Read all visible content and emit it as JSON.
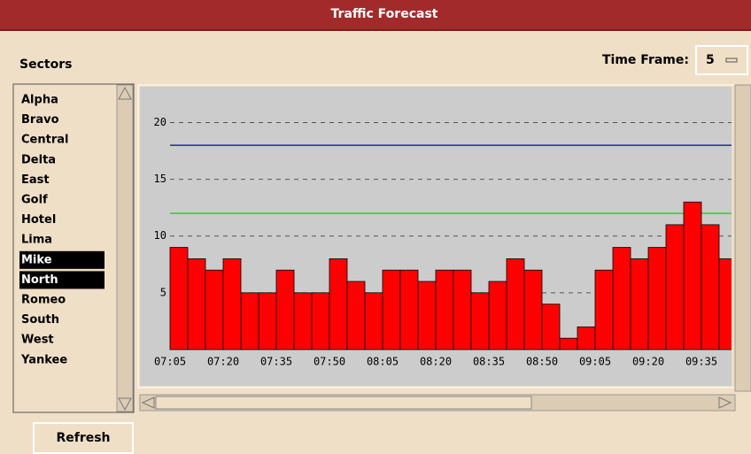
{
  "window": {
    "title": "Traffic Forecast"
  },
  "sectors": {
    "label": "Sectors",
    "items": [
      "Alpha",
      "Bravo",
      "Central",
      "Delta",
      "East",
      "Golf",
      "Hotel",
      "Lima",
      "Mike",
      "North",
      "Romeo",
      "South",
      "West",
      "Yankee"
    ],
    "selected_indices": [
      8,
      9
    ]
  },
  "time_frame": {
    "label": "Time Frame:",
    "value": "5"
  },
  "refresh_button": {
    "label": "Refresh"
  },
  "chart_data": {
    "type": "bar",
    "color": "#ff0000",
    "categories": [
      "07:05",
      null,
      null,
      "07:20",
      null,
      null,
      "07:35",
      null,
      null,
      "07:50",
      null,
      null,
      "08:05",
      null,
      null,
      "08:20",
      null,
      null,
      "08:35",
      null,
      null,
      "08:50",
      null,
      null,
      "09:05",
      null,
      null,
      "09:20",
      null,
      null,
      "09:35",
      null
    ],
    "values": [
      9,
      8,
      7,
      8,
      5,
      5,
      7,
      5,
      5,
      8,
      6,
      5,
      7,
      7,
      6,
      7,
      7,
      5,
      6,
      8,
      7,
      4,
      1,
      2,
      7,
      9,
      8,
      9,
      11,
      13,
      11,
      8
    ],
    "ylim": [
      0,
      23
    ],
    "yticks": [
      5,
      10,
      15,
      20
    ],
    "grid": true,
    "reference_lines": [
      {
        "value": 18,
        "color": "#0000cc"
      },
      {
        "value": 12,
        "color": "#00cc00"
      }
    ]
  }
}
